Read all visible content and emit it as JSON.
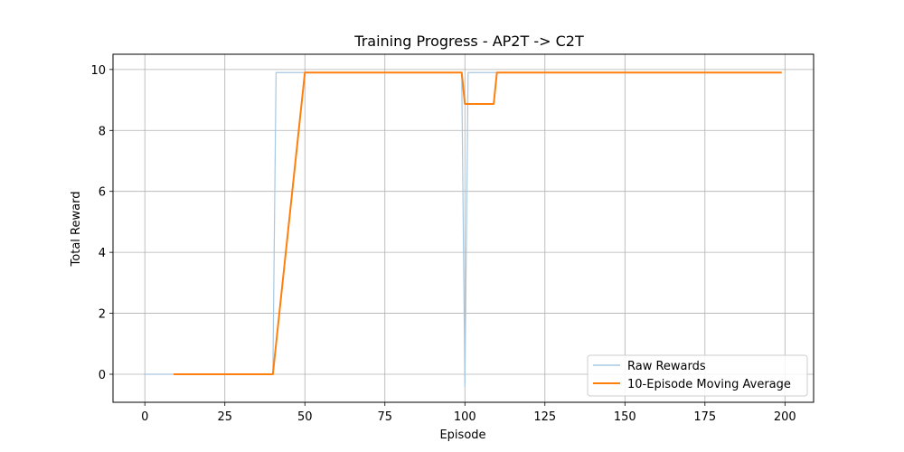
{
  "chart_data": {
    "type": "line",
    "title": "Training Progress - AP2T -> C2T",
    "xlabel": "Episode",
    "ylabel": "Total Reward",
    "xlim": [
      -9.95,
      208.95
    ],
    "ylim": [
      -0.92,
      10.5
    ],
    "xticks": [
      0,
      25,
      50,
      75,
      100,
      125,
      150,
      175,
      200
    ],
    "yticks": [
      0,
      2,
      4,
      6,
      8,
      10
    ],
    "grid": true,
    "legend_position": "lower-right",
    "series": [
      {
        "name": "Raw Rewards",
        "color": "#a6c8e3",
        "points": [
          [
            0,
            0
          ],
          [
            40,
            0
          ],
          [
            41,
            9.9
          ],
          [
            99,
            9.9
          ],
          [
            100,
            -0.4
          ],
          [
            101,
            9.9
          ],
          [
            199,
            9.9
          ]
        ]
      },
      {
        "name": "10-Episode Moving Average",
        "color": "#ff7f0e",
        "points": [
          [
            9,
            0
          ],
          [
            40,
            0
          ],
          [
            50,
            9.9
          ],
          [
            99,
            9.9
          ],
          [
            100,
            8.87
          ],
          [
            109,
            8.87
          ],
          [
            110,
            9.9
          ],
          [
            199,
            9.9
          ]
        ]
      }
    ]
  }
}
